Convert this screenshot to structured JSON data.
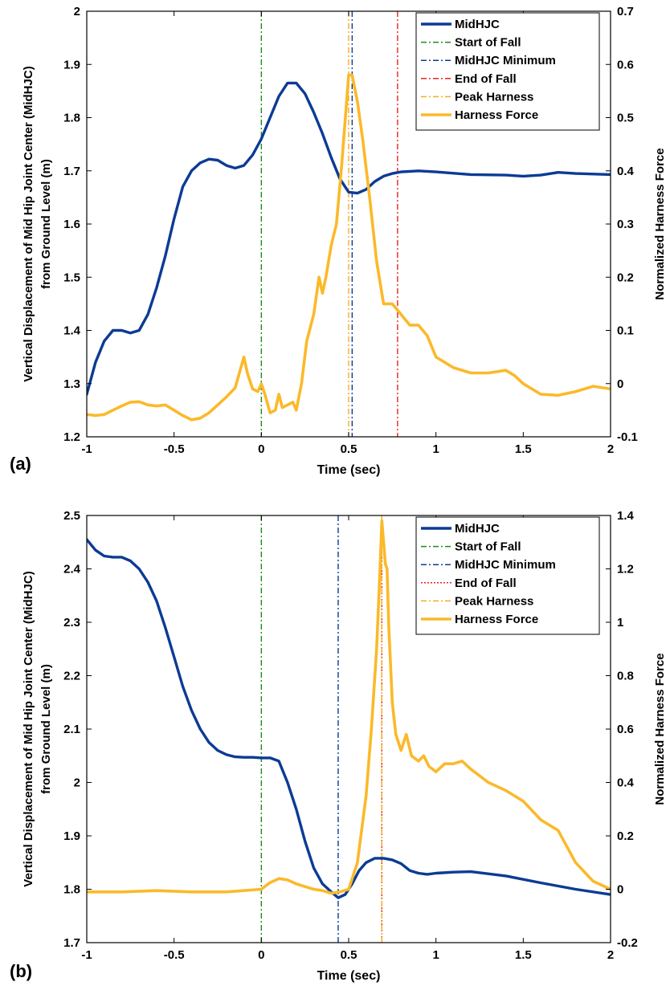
{
  "chart_data": [
    {
      "panel_label": "(a)",
      "type": "line",
      "xlabel": "Time (sec)",
      "ylabel_lines": [
        "Vertical Displacement of Mid Hip Joint Center (MidHJC)",
        "from Ground Level (m)"
      ],
      "y2label": "Normalized Harness Force",
      "xlim": [
        -1,
        2
      ],
      "ylim": [
        1.2,
        2
      ],
      "y2lim": [
        -0.1,
        0.7
      ],
      "xticks": [
        -1,
        -0.5,
        0,
        0.5,
        1,
        1.5,
        2
      ],
      "xtick_labels": [
        "-1",
        "-0.5",
        "0",
        "0.5",
        "1",
        "1.5",
        "2"
      ],
      "yticks": [
        1.2,
        1.3,
        1.4,
        1.5,
        1.6,
        1.7,
        1.8,
        1.9,
        2
      ],
      "ytick_labels": [
        "1.2",
        "1.3",
        "1.4",
        "1.5",
        "1.6",
        "1.7",
        "1.8",
        "1.9",
        "2"
      ],
      "y2ticks": [
        -0.1,
        0,
        0.1,
        0.2,
        0.3,
        0.4,
        0.5,
        0.6,
        0.7
      ],
      "y2tick_labels": [
        "-0.1",
        "0",
        "0.1",
        "0.2",
        "0.3",
        "0.4",
        "0.5",
        "0.6",
        "0.7"
      ],
      "grid": false,
      "legend_position": "top-right",
      "legend": [
        {
          "label": "MidHJC",
          "color": "#0b3b94",
          "style": "solid"
        },
        {
          "label": "Start of Fall",
          "color": "#1f8a1f",
          "style": "dashdot"
        },
        {
          "label": "MidHJC Minimum",
          "color": "#0b3b94",
          "style": "dashdot"
        },
        {
          "label": "End of Fall",
          "color": "#e8251f",
          "style": "dashdot"
        },
        {
          "label": "Peak Harness",
          "color": "#f5ad1f",
          "style": "dashdot"
        },
        {
          "label": "Harness Force",
          "color": "#fbb92a",
          "style": "solid"
        }
      ],
      "vlines": [
        {
          "x": 0,
          "color": "#1f8a1f",
          "style": "dashdot"
        },
        {
          "x": 0.52,
          "color": "#0b3b94",
          "style": "dashdot"
        },
        {
          "x": 0.78,
          "color": "#e8251f",
          "style": "dashdot"
        },
        {
          "x": 0.5,
          "color": "#f5ad1f",
          "style": "dashdot"
        }
      ],
      "series": [
        {
          "axis": "left",
          "color": "#0b3b94",
          "x": [
            -1,
            -0.95,
            -0.9,
            -0.85,
            -0.8,
            -0.75,
            -0.7,
            -0.65,
            -0.6,
            -0.55,
            -0.5,
            -0.45,
            -0.4,
            -0.35,
            -0.3,
            -0.25,
            -0.2,
            -0.15,
            -0.1,
            -0.05,
            0,
            0.05,
            0.1,
            0.15,
            0.2,
            0.25,
            0.3,
            0.35,
            0.4,
            0.45,
            0.5,
            0.55,
            0.6,
            0.65,
            0.7,
            0.75,
            0.8,
            0.9,
            1.0,
            1.2,
            1.4,
            1.5,
            1.6,
            1.7,
            1.8,
            2.0
          ],
          "values": [
            1.28,
            1.34,
            1.38,
            1.4,
            1.4,
            1.395,
            1.4,
            1.43,
            1.48,
            1.54,
            1.61,
            1.67,
            1.7,
            1.715,
            1.722,
            1.72,
            1.71,
            1.705,
            1.71,
            1.73,
            1.76,
            1.8,
            1.84,
            1.865,
            1.865,
            1.845,
            1.81,
            1.77,
            1.725,
            1.685,
            1.66,
            1.658,
            1.665,
            1.68,
            1.69,
            1.695,
            1.698,
            1.7,
            1.698,
            1.693,
            1.692,
            1.69,
            1.692,
            1.697,
            1.695,
            1.693
          ]
        },
        {
          "axis": "right",
          "color": "#fbb92a",
          "x": [
            -1,
            -0.95,
            -0.9,
            -0.85,
            -0.8,
            -0.75,
            -0.7,
            -0.65,
            -0.6,
            -0.55,
            -0.5,
            -0.45,
            -0.4,
            -0.35,
            -0.3,
            -0.25,
            -0.2,
            -0.15,
            -0.1,
            -0.08,
            -0.05,
            -0.02,
            0,
            0.02,
            0.05,
            0.08,
            0.1,
            0.12,
            0.15,
            0.18,
            0.2,
            0.23,
            0.26,
            0.3,
            0.33,
            0.35,
            0.37,
            0.4,
            0.43,
            0.46,
            0.5,
            0.52,
            0.55,
            0.58,
            0.62,
            0.66,
            0.7,
            0.75,
            0.8,
            0.85,
            0.9,
            0.95,
            1.0,
            1.1,
            1.2,
            1.3,
            1.4,
            1.45,
            1.5,
            1.6,
            1.7,
            1.8,
            1.9,
            2.0
          ],
          "values": [
            -0.058,
            -0.06,
            -0.058,
            -0.05,
            -0.042,
            -0.035,
            -0.034,
            -0.04,
            -0.042,
            -0.04,
            -0.05,
            -0.06,
            -0.068,
            -0.065,
            -0.055,
            -0.04,
            -0.025,
            -0.008,
            0.05,
            0.02,
            -0.01,
            -0.015,
            0,
            -0.02,
            -0.055,
            -0.05,
            -0.02,
            -0.045,
            -0.04,
            -0.035,
            -0.05,
            0.0,
            0.08,
            0.13,
            0.2,
            0.17,
            0.2,
            0.26,
            0.3,
            0.41,
            0.58,
            0.58,
            0.53,
            0.46,
            0.35,
            0.23,
            0.15,
            0.15,
            0.13,
            0.11,
            0.11,
            0.09,
            0.05,
            0.03,
            0.02,
            0.02,
            0.025,
            0.015,
            0.0,
            -0.02,
            -0.022,
            -0.015,
            -0.005,
            -0.01
          ]
        }
      ]
    },
    {
      "panel_label": "(b)",
      "type": "line",
      "xlabel": "Time (sec)",
      "ylabel_lines": [
        "Vertical Displacement of Mid Hip Joint Center (MidHJC)",
        "from Ground Level (m)"
      ],
      "y2label": "Normalized Harness Force",
      "xlim": [
        -1,
        2
      ],
      "ylim": [
        1.7,
        2.5
      ],
      "y2lim": [
        -0.2,
        1.4
      ],
      "xticks": [
        -1,
        -0.5,
        0,
        0.5,
        1,
        1.5,
        2
      ],
      "xtick_labels": [
        "-1",
        "-0.5",
        "0",
        "0.5",
        "1",
        "1.5",
        "2"
      ],
      "yticks": [
        1.7,
        1.8,
        1.9,
        2,
        2.1,
        2.2,
        2.3,
        2.4,
        2.5
      ],
      "ytick_labels": [
        "1.7",
        "1.8",
        "1.9",
        "2",
        "2.1",
        "2.2",
        "2.3",
        "2.4",
        "2.5"
      ],
      "y2ticks": [
        -0.2,
        0,
        0.2,
        0.4,
        0.6,
        0.8,
        1,
        1.2,
        1.4
      ],
      "y2tick_labels": [
        "-0.2",
        "0",
        "0.2",
        "0.4",
        "0.6",
        "0.8",
        "1",
        "1.2",
        "1.4"
      ],
      "grid": false,
      "legend_position": "top-right",
      "legend": [
        {
          "label": "MidHJC",
          "color": "#0b3b94",
          "style": "solid"
        },
        {
          "label": "Start of Fall",
          "color": "#1f8a1f",
          "style": "dashdot"
        },
        {
          "label": "MidHJC Minimum",
          "color": "#0b3b94",
          "style": "dashdot"
        },
        {
          "label": "End of Fall",
          "color": "#e8251f",
          "style": "dotted"
        },
        {
          "label": "Peak Harness",
          "color": "#f5ad1f",
          "style": "dashdot"
        },
        {
          "label": "Harness Force",
          "color": "#fbb92a",
          "style": "solid"
        }
      ],
      "vlines": [
        {
          "x": 0,
          "color": "#1f8a1f",
          "style": "dashdot"
        },
        {
          "x": 0.44,
          "color": "#0b3b94",
          "style": "dashdot"
        },
        {
          "x": 0.69,
          "color": "#e8251f",
          "style": "dotted"
        },
        {
          "x": 0.69,
          "color": "#f5ad1f",
          "style": "dashdot"
        }
      ],
      "series": [
        {
          "axis": "left",
          "color": "#0b3b94",
          "x": [
            -1,
            -0.95,
            -0.9,
            -0.85,
            -0.8,
            -0.75,
            -0.7,
            -0.65,
            -0.6,
            -0.55,
            -0.5,
            -0.45,
            -0.4,
            -0.35,
            -0.3,
            -0.25,
            -0.2,
            -0.15,
            -0.1,
            -0.05,
            0,
            0.05,
            0.1,
            0.15,
            0.2,
            0.25,
            0.3,
            0.35,
            0.4,
            0.44,
            0.48,
            0.52,
            0.56,
            0.6,
            0.65,
            0.7,
            0.75,
            0.8,
            0.85,
            0.9,
            0.95,
            1.0,
            1.1,
            1.2,
            1.4,
            1.6,
            1.8,
            2.0
          ],
          "values": [
            2.455,
            2.435,
            2.424,
            2.422,
            2.422,
            2.415,
            2.4,
            2.375,
            2.34,
            2.29,
            2.235,
            2.18,
            2.135,
            2.1,
            2.075,
            2.06,
            2.052,
            2.048,
            2.047,
            2.047,
            2.046,
            2.046,
            2.04,
            2.0,
            1.95,
            1.89,
            1.84,
            1.81,
            1.795,
            1.784,
            1.79,
            1.81,
            1.835,
            1.85,
            1.858,
            1.858,
            1.855,
            1.848,
            1.835,
            1.83,
            1.828,
            1.83,
            1.832,
            1.833,
            1.825,
            1.812,
            1.8,
            1.79
          ]
        },
        {
          "axis": "right",
          "color": "#fbb92a",
          "x": [
            -1,
            -0.8,
            -0.6,
            -0.4,
            -0.2,
            0,
            0.05,
            0.1,
            0.15,
            0.2,
            0.25,
            0.3,
            0.35,
            0.4,
            0.45,
            0.5,
            0.55,
            0.6,
            0.63,
            0.66,
            0.68,
            0.69,
            0.7,
            0.71,
            0.72,
            0.73,
            0.75,
            0.77,
            0.8,
            0.83,
            0.86,
            0.9,
            0.93,
            0.96,
            1.0,
            1.05,
            1.1,
            1.15,
            1.2,
            1.3,
            1.4,
            1.5,
            1.6,
            1.7,
            1.8,
            1.9,
            2.0
          ],
          "values": [
            -0.01,
            -0.01,
            -0.005,
            -0.01,
            -0.01,
            0.0,
            0.025,
            0.04,
            0.035,
            0.02,
            0.01,
            0.0,
            -0.005,
            -0.015,
            -0.01,
            0.0,
            0.1,
            0.35,
            0.6,
            0.9,
            1.2,
            1.38,
            1.3,
            1.22,
            1.2,
            0.98,
            0.7,
            0.58,
            0.52,
            0.58,
            0.5,
            0.48,
            0.5,
            0.46,
            0.44,
            0.47,
            0.47,
            0.48,
            0.45,
            0.4,
            0.37,
            0.33,
            0.26,
            0.22,
            0.1,
            0.03,
            0.0
          ]
        }
      ]
    }
  ]
}
